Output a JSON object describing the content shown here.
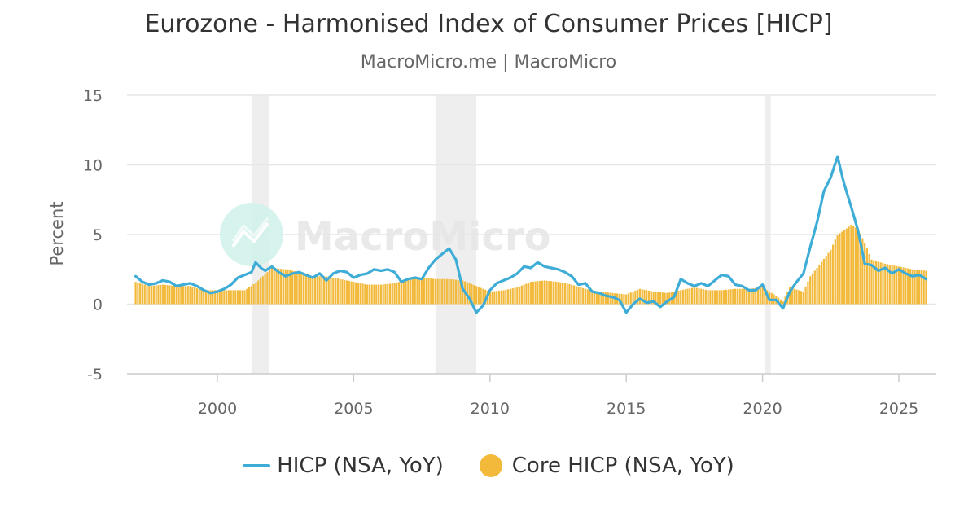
{
  "header": {
    "title": "Eurozone - Harmonised Index of Consumer Prices [HICP]",
    "subtitle": "MacroMicro.me | MacroMicro"
  },
  "watermark": {
    "text": "MacroMicro"
  },
  "colors": {
    "hicp": "#3dacd6",
    "core": "#f2b93b",
    "recession": "#eeeeee",
    "grid": "#e6e6e6"
  },
  "chart_data": {
    "type": "line+bar",
    "title": "Eurozone - Harmonised Index of Consumer Prices [HICP]",
    "ylabel": "Percent",
    "xlabel": "",
    "ylim": [
      -5,
      15
    ],
    "xlim": [
      1997.0,
      2026.2
    ],
    "yticks": [
      -5,
      0,
      5,
      10,
      15
    ],
    "xticks": [
      2000,
      2005,
      2010,
      2015,
      2020,
      2025
    ],
    "legend_position": "bottom-center",
    "recessions": [
      [
        2001.25,
        2001.9
      ],
      [
        2008.0,
        2009.5
      ],
      [
        2020.1,
        2020.3
      ]
    ],
    "series": [
      {
        "name": "HICP (NSA, YoY)",
        "kind": "line",
        "points": [
          [
            1997.0,
            2.0
          ],
          [
            1997.25,
            1.6
          ],
          [
            1997.5,
            1.4
          ],
          [
            1997.75,
            1.5
          ],
          [
            1998.0,
            1.7
          ],
          [
            1998.25,
            1.6
          ],
          [
            1998.5,
            1.3
          ],
          [
            1998.75,
            1.4
          ],
          [
            1999.0,
            1.5
          ],
          [
            1999.25,
            1.3
          ],
          [
            1999.5,
            1.0
          ],
          [
            1999.75,
            0.8
          ],
          [
            2000.0,
            0.9
          ],
          [
            2000.25,
            1.1
          ],
          [
            2000.5,
            1.4
          ],
          [
            2000.75,
            1.9
          ],
          [
            2001.0,
            2.1
          ],
          [
            2001.25,
            2.3
          ],
          [
            2001.4,
            3.0
          ],
          [
            2001.6,
            2.6
          ],
          [
            2001.75,
            2.4
          ],
          [
            2002.0,
            2.7
          ],
          [
            2002.25,
            2.3
          ],
          [
            2002.5,
            2.0
          ],
          [
            2002.75,
            2.2
          ],
          [
            2003.0,
            2.3
          ],
          [
            2003.25,
            2.1
          ],
          [
            2003.5,
            1.9
          ],
          [
            2003.75,
            2.2
          ],
          [
            2004.0,
            1.7
          ],
          [
            2004.25,
            2.2
          ],
          [
            2004.5,
            2.4
          ],
          [
            2004.75,
            2.3
          ],
          [
            2005.0,
            1.9
          ],
          [
            2005.25,
            2.1
          ],
          [
            2005.5,
            2.2
          ],
          [
            2005.75,
            2.5
          ],
          [
            2006.0,
            2.4
          ],
          [
            2006.25,
            2.5
          ],
          [
            2006.5,
            2.3
          ],
          [
            2006.75,
            1.6
          ],
          [
            2007.0,
            1.8
          ],
          [
            2007.25,
            1.9
          ],
          [
            2007.5,
            1.8
          ],
          [
            2007.75,
            2.6
          ],
          [
            2008.0,
            3.2
          ],
          [
            2008.25,
            3.6
          ],
          [
            2008.5,
            4.0
          ],
          [
            2008.75,
            3.2
          ],
          [
            2009.0,
            1.1
          ],
          [
            2009.25,
            0.4
          ],
          [
            2009.5,
            -0.6
          ],
          [
            2009.75,
            -0.1
          ],
          [
            2010.0,
            1.0
          ],
          [
            2010.25,
            1.5
          ],
          [
            2010.5,
            1.7
          ],
          [
            2010.75,
            1.9
          ],
          [
            2011.0,
            2.2
          ],
          [
            2011.25,
            2.7
          ],
          [
            2011.5,
            2.6
          ],
          [
            2011.75,
            3.0
          ],
          [
            2012.0,
            2.7
          ],
          [
            2012.25,
            2.6
          ],
          [
            2012.5,
            2.5
          ],
          [
            2012.75,
            2.3
          ],
          [
            2013.0,
            2.0
          ],
          [
            2013.25,
            1.4
          ],
          [
            2013.5,
            1.5
          ],
          [
            2013.75,
            0.9
          ],
          [
            2014.0,
            0.8
          ],
          [
            2014.25,
            0.6
          ],
          [
            2014.5,
            0.5
          ],
          [
            2014.75,
            0.3
          ],
          [
            2015.0,
            -0.6
          ],
          [
            2015.25,
            0.0
          ],
          [
            2015.5,
            0.4
          ],
          [
            2015.75,
            0.1
          ],
          [
            2016.0,
            0.2
          ],
          [
            2016.25,
            -0.2
          ],
          [
            2016.5,
            0.2
          ],
          [
            2016.75,
            0.5
          ],
          [
            2017.0,
            1.8
          ],
          [
            2017.25,
            1.5
          ],
          [
            2017.5,
            1.3
          ],
          [
            2017.75,
            1.5
          ],
          [
            2018.0,
            1.3
          ],
          [
            2018.25,
            1.7
          ],
          [
            2018.5,
            2.1
          ],
          [
            2018.75,
            2.0
          ],
          [
            2019.0,
            1.4
          ],
          [
            2019.25,
            1.3
          ],
          [
            2019.5,
            1.0
          ],
          [
            2019.75,
            1.0
          ],
          [
            2020.0,
            1.4
          ],
          [
            2020.25,
            0.3
          ],
          [
            2020.5,
            0.3
          ],
          [
            2020.75,
            -0.3
          ],
          [
            2021.0,
            0.9
          ],
          [
            2021.25,
            1.6
          ],
          [
            2021.5,
            2.2
          ],
          [
            2021.75,
            4.1
          ],
          [
            2022.0,
            5.9
          ],
          [
            2022.25,
            8.1
          ],
          [
            2022.5,
            9.1
          ],
          [
            2022.75,
            10.6
          ],
          [
            2022.92,
            9.2
          ],
          [
            2023.0,
            8.6
          ],
          [
            2023.25,
            7.0
          ],
          [
            2023.5,
            5.3
          ],
          [
            2023.75,
            2.9
          ],
          [
            2024.0,
            2.8
          ],
          [
            2024.25,
            2.4
          ],
          [
            2024.5,
            2.6
          ],
          [
            2024.75,
            2.2
          ],
          [
            2025.0,
            2.5
          ],
          [
            2025.25,
            2.2
          ],
          [
            2025.5,
            2.0
          ],
          [
            2025.75,
            2.1
          ],
          [
            2026.0,
            1.8
          ]
        ]
      },
      {
        "name": "Core HICP (NSA, YoY)",
        "kind": "bar",
        "points": [
          [
            1997.0,
            1.6
          ],
          [
            1997.5,
            1.3
          ],
          [
            1998.0,
            1.4
          ],
          [
            1998.5,
            1.3
          ],
          [
            1999.0,
            1.3
          ],
          [
            1999.5,
            1.0
          ],
          [
            2000.0,
            1.0
          ],
          [
            2000.5,
            1.0
          ],
          [
            2001.0,
            1.0
          ],
          [
            2001.25,
            1.3
          ],
          [
            2001.5,
            1.7
          ],
          [
            2002.0,
            2.6
          ],
          [
            2002.5,
            2.5
          ],
          [
            2003.0,
            2.3
          ],
          [
            2003.5,
            2.0
          ],
          [
            2004.0,
            2.0
          ],
          [
            2004.5,
            1.8
          ],
          [
            2005.0,
            1.6
          ],
          [
            2005.5,
            1.4
          ],
          [
            2006.0,
            1.4
          ],
          [
            2006.5,
            1.5
          ],
          [
            2007.0,
            1.8
          ],
          [
            2007.5,
            1.9
          ],
          [
            2008.0,
            1.8
          ],
          [
            2008.5,
            1.8
          ],
          [
            2009.0,
            1.7
          ],
          [
            2009.5,
            1.3
          ],
          [
            2010.0,
            0.9
          ],
          [
            2010.5,
            1.0
          ],
          [
            2011.0,
            1.2
          ],
          [
            2011.5,
            1.6
          ],
          [
            2012.0,
            1.7
          ],
          [
            2012.5,
            1.6
          ],
          [
            2013.0,
            1.4
          ],
          [
            2013.5,
            1.1
          ],
          [
            2014.0,
            0.9
          ],
          [
            2014.5,
            0.8
          ],
          [
            2015.0,
            0.7
          ],
          [
            2015.5,
            1.1
          ],
          [
            2016.0,
            0.9
          ],
          [
            2016.5,
            0.8
          ],
          [
            2017.0,
            1.0
          ],
          [
            2017.5,
            1.2
          ],
          [
            2018.0,
            1.0
          ],
          [
            2018.5,
            1.0
          ],
          [
            2019.0,
            1.1
          ],
          [
            2019.5,
            1.1
          ],
          [
            2020.0,
            1.2
          ],
          [
            2020.5,
            0.6
          ],
          [
            2020.75,
            0.2
          ],
          [
            2021.0,
            1.2
          ],
          [
            2021.5,
            0.9
          ],
          [
            2021.75,
            2.0
          ],
          [
            2022.0,
            2.6
          ],
          [
            2022.5,
            3.9
          ],
          [
            2022.75,
            5.0
          ],
          [
            2023.0,
            5.3
          ],
          [
            2023.25,
            5.7
          ],
          [
            2023.5,
            5.4
          ],
          [
            2023.75,
            4.4
          ],
          [
            2024.0,
            3.2
          ],
          [
            2024.5,
            2.9
          ],
          [
            2025.0,
            2.7
          ],
          [
            2025.5,
            2.5
          ],
          [
            2026.0,
            2.4
          ]
        ]
      }
    ]
  }
}
